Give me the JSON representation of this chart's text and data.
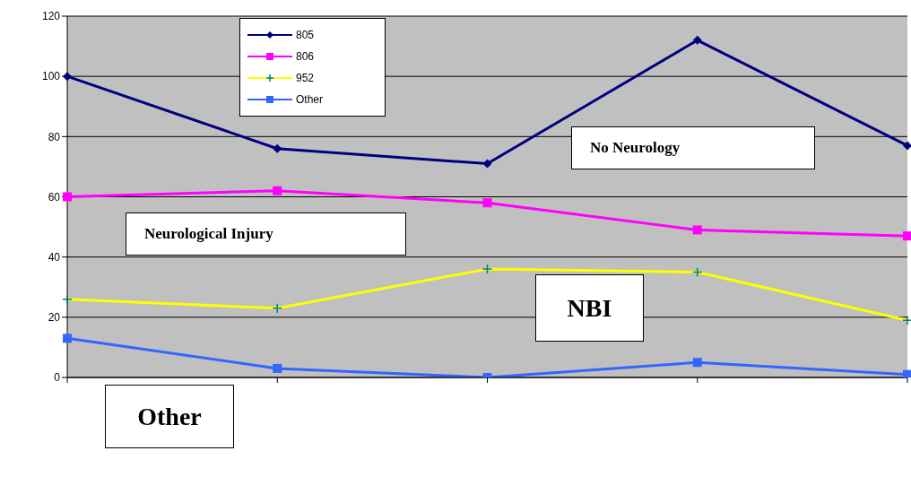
{
  "chart_data": {
    "type": "line",
    "categories": [
      null,
      null,
      null,
      null,
      null
    ],
    "series": [
      {
        "name": "805",
        "color": "#000080",
        "marker": "diamond",
        "values": [
          100,
          76,
          71,
          112,
          77
        ]
      },
      {
        "name": "806",
        "color": "#ff00ff",
        "marker": "square",
        "values": [
          60,
          62,
          58,
          49,
          47
        ]
      },
      {
        "name": "952",
        "color": "#ffff00",
        "marker": "cross",
        "values": [
          26,
          23,
          36,
          35,
          19
        ]
      },
      {
        "name": "Other",
        "color": "#3366ff",
        "marker": "square",
        "values": [
          13,
          3,
          0,
          5,
          1
        ]
      }
    ],
    "ylim": [
      0,
      120
    ],
    "yticks": [
      0,
      20,
      40,
      60,
      80,
      100,
      120
    ],
    "grid": "y",
    "legend": "top left",
    "annotations": [
      "No Neurology",
      "Neurological Injury",
      "NBI",
      "Other"
    ]
  }
}
